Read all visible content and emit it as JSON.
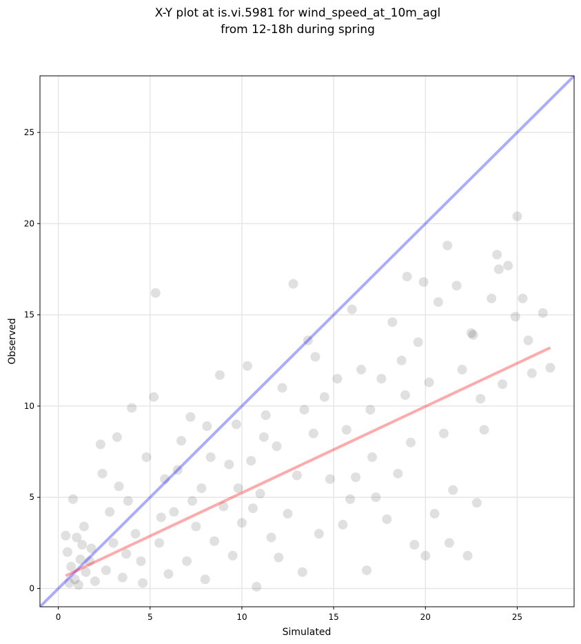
{
  "chart_data": {
    "type": "scatter",
    "title": [
      "X-Y plot at is.vi.5981 for wind_speed_at_10m_agl",
      "from 12-18h during spring"
    ],
    "xlabel": "Simulated",
    "ylabel": "Observed",
    "xlim": [
      -1.0,
      28.1
    ],
    "ylim": [
      -1.0,
      28.1
    ],
    "xticks": [
      0,
      5,
      10,
      15,
      20,
      25
    ],
    "yticks": [
      0,
      5,
      10,
      15,
      20,
      25
    ],
    "grid": true,
    "series": [
      {
        "color": "#000000",
        "x": [
          0.5,
          0.7,
          0.9,
          1.0,
          1.2,
          1.4,
          0.6,
          1.5,
          1.8,
          0.8,
          1.1,
          1.3,
          0.4,
          1.7,
          2.0,
          2.3,
          2.4,
          3.2,
          2.6,
          3.0,
          3.5,
          3.8,
          4.0,
          4.2,
          4.5,
          4.8,
          2.8,
          3.3,
          4.6,
          3.7,
          5.2,
          5.3,
          5.5,
          5.8,
          6.0,
          6.3,
          6.7,
          7.0,
          7.2,
          7.5,
          7.8,
          8.0,
          8.3,
          8.5,
          8.8,
          9.0,
          9.3,
          9.5,
          9.7,
          10.0,
          6.5,
          7.3,
          8.1,
          5.6,
          9.8,
          10.3,
          10.5,
          10.8,
          11.0,
          11.3,
          11.6,
          11.9,
          12.2,
          12.5,
          12.8,
          13.0,
          13.3,
          13.6,
          13.9,
          14.2,
          14.5,
          14.8,
          12.0,
          11.2,
          10.6,
          13.4,
          14.0,
          15.2,
          15.5,
          15.7,
          16.0,
          16.2,
          16.5,
          16.8,
          17.0,
          17.3,
          17.6,
          17.9,
          18.2,
          18.5,
          18.7,
          19.0,
          19.2,
          19.4,
          19.6,
          19.9,
          18.9,
          17.1,
          15.9,
          20.0,
          20.2,
          20.5,
          20.7,
          21.0,
          21.2,
          21.3,
          21.5,
          21.7,
          22.0,
          22.3,
          22.5,
          22.8,
          23.2,
          23.6,
          23.9,
          24.0,
          24.5,
          24.9,
          25.0,
          25.3,
          25.6,
          25.8,
          26.4,
          26.8,
          24.2,
          23.0,
          22.6
        ],
        "y": [
          2.0,
          1.2,
          0.5,
          2.8,
          1.6,
          3.4,
          0.3,
          0.9,
          2.2,
          4.9,
          0.2,
          2.4,
          2.9,
          1.5,
          0.4,
          7.9,
          6.3,
          8.3,
          1.0,
          2.5,
          0.6,
          4.8,
          9.9,
          3.0,
          1.5,
          7.2,
          4.2,
          5.6,
          0.3,
          1.9,
          10.5,
          16.2,
          2.5,
          6.0,
          0.8,
          4.2,
          8.1,
          1.5,
          9.4,
          3.4,
          5.5,
          0.5,
          7.2,
          2.6,
          11.7,
          4.5,
          6.8,
          1.8,
          9.0,
          3.6,
          6.5,
          4.8,
          8.9,
          3.9,
          5.5,
          12.2,
          7.0,
          0.1,
          5.2,
          9.5,
          2.8,
          7.8,
          11.0,
          4.1,
          16.7,
          6.2,
          0.9,
          13.6,
          8.5,
          3.0,
          10.5,
          6.0,
          1.7,
          8.3,
          4.4,
          9.8,
          12.7,
          11.5,
          3.5,
          8.7,
          15.3,
          6.1,
          12.0,
          1.0,
          9.8,
          5.0,
          11.5,
          3.8,
          14.6,
          6.3,
          12.5,
          17.1,
          8.0,
          2.4,
          13.5,
          16.8,
          10.6,
          7.2,
          4.9,
          1.8,
          11.3,
          4.1,
          15.7,
          8.5,
          18.8,
          2.5,
          5.4,
          16.6,
          12.0,
          1.8,
          14.0,
          4.7,
          8.7,
          15.9,
          18.3,
          17.5,
          17.7,
          14.9,
          20.4,
          15.9,
          13.6,
          11.8,
          15.1,
          12.1,
          11.2,
          10.4,
          13.9
        ]
      }
    ],
    "lines": [
      {
        "color": "#0000ff",
        "x": [
          -1.0,
          28.1
        ],
        "y": [
          -1.0,
          28.1
        ]
      },
      {
        "color": "#ff0000",
        "x": [
          0.4,
          26.8
        ],
        "y": [
          0.7,
          13.2
        ]
      }
    ]
  }
}
